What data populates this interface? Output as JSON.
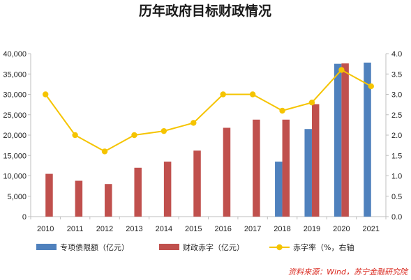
{
  "chart_data": {
    "type": "bar",
    "title": "历年政府目标财政情况",
    "categories": [
      "2010",
      "2011",
      "2012",
      "2013",
      "2014",
      "2015",
      "2016",
      "2017",
      "2018",
      "2019",
      "2020",
      "2021"
    ],
    "series": [
      {
        "name": "专项债限额（亿元）",
        "type": "bar",
        "axis": "left",
        "color": "#4f81bd",
        "values": [
          null,
          null,
          null,
          null,
          null,
          null,
          null,
          null,
          13500,
          21500,
          37500,
          37800
        ]
      },
      {
        "name": "财政赤字（亿元）",
        "type": "bar",
        "axis": "left",
        "color": "#c0504d",
        "values": [
          10500,
          8800,
          8000,
          12000,
          13500,
          16200,
          21800,
          23800,
          23800,
          27600,
          37600,
          null
        ]
      },
      {
        "name": "赤字率（%，右轴",
        "type": "line",
        "axis": "right",
        "color": "#f5c400",
        "values": [
          3.0,
          2.0,
          1.6,
          2.0,
          2.1,
          2.3,
          3.0,
          3.0,
          2.6,
          2.8,
          3.6,
          3.2
        ]
      }
    ],
    "y_left": {
      "min": 0,
      "max": 40000,
      "ticks": [
        "0",
        "5,000",
        "10,000",
        "15,000",
        "20,000",
        "25,000",
        "30,000",
        "35,000",
        "40,000"
      ]
    },
    "y_right": {
      "min": 0,
      "max": 4.0,
      "ticks": [
        "0.0",
        "0.5",
        "1.0",
        "1.5",
        "2.0",
        "2.5",
        "3.0",
        "3.5",
        "4.0"
      ]
    },
    "grid": false,
    "legend_position": "bottom",
    "source": "资料来源：Wind，苏宁金融研究院"
  }
}
